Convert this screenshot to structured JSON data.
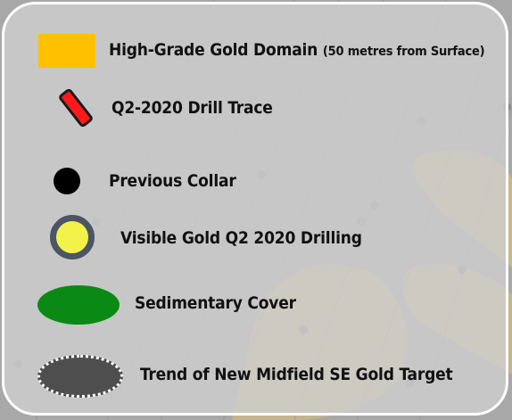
{
  "legend": {
    "items": [
      {
        "label": "High-Grade Gold Domain",
        "note": "(50 metres from Surface)",
        "symbol": "orange-rectangle",
        "color": "#ffc000"
      },
      {
        "label": "Q2-2020 Drill Trace",
        "symbol": "red-drill-segment",
        "color": "#ff1a1a"
      },
      {
        "label": "Previous Collar",
        "symbol": "black-dot",
        "color": "#000000"
      },
      {
        "label": "Visible Gold Q2 2020 Drilling",
        "symbol": "yellow-circle-outlined",
        "color": "#f2f24a",
        "outline": "#4b5563"
      },
      {
        "label": "Sedimentary Cover",
        "symbol": "green-ellipse",
        "color": "#0a8a14"
      },
      {
        "label": "Trend of New Midfield SE Gold Target",
        "symbol": "grey-dashed-ellipse",
        "color": "#4e4e4e"
      }
    ]
  }
}
